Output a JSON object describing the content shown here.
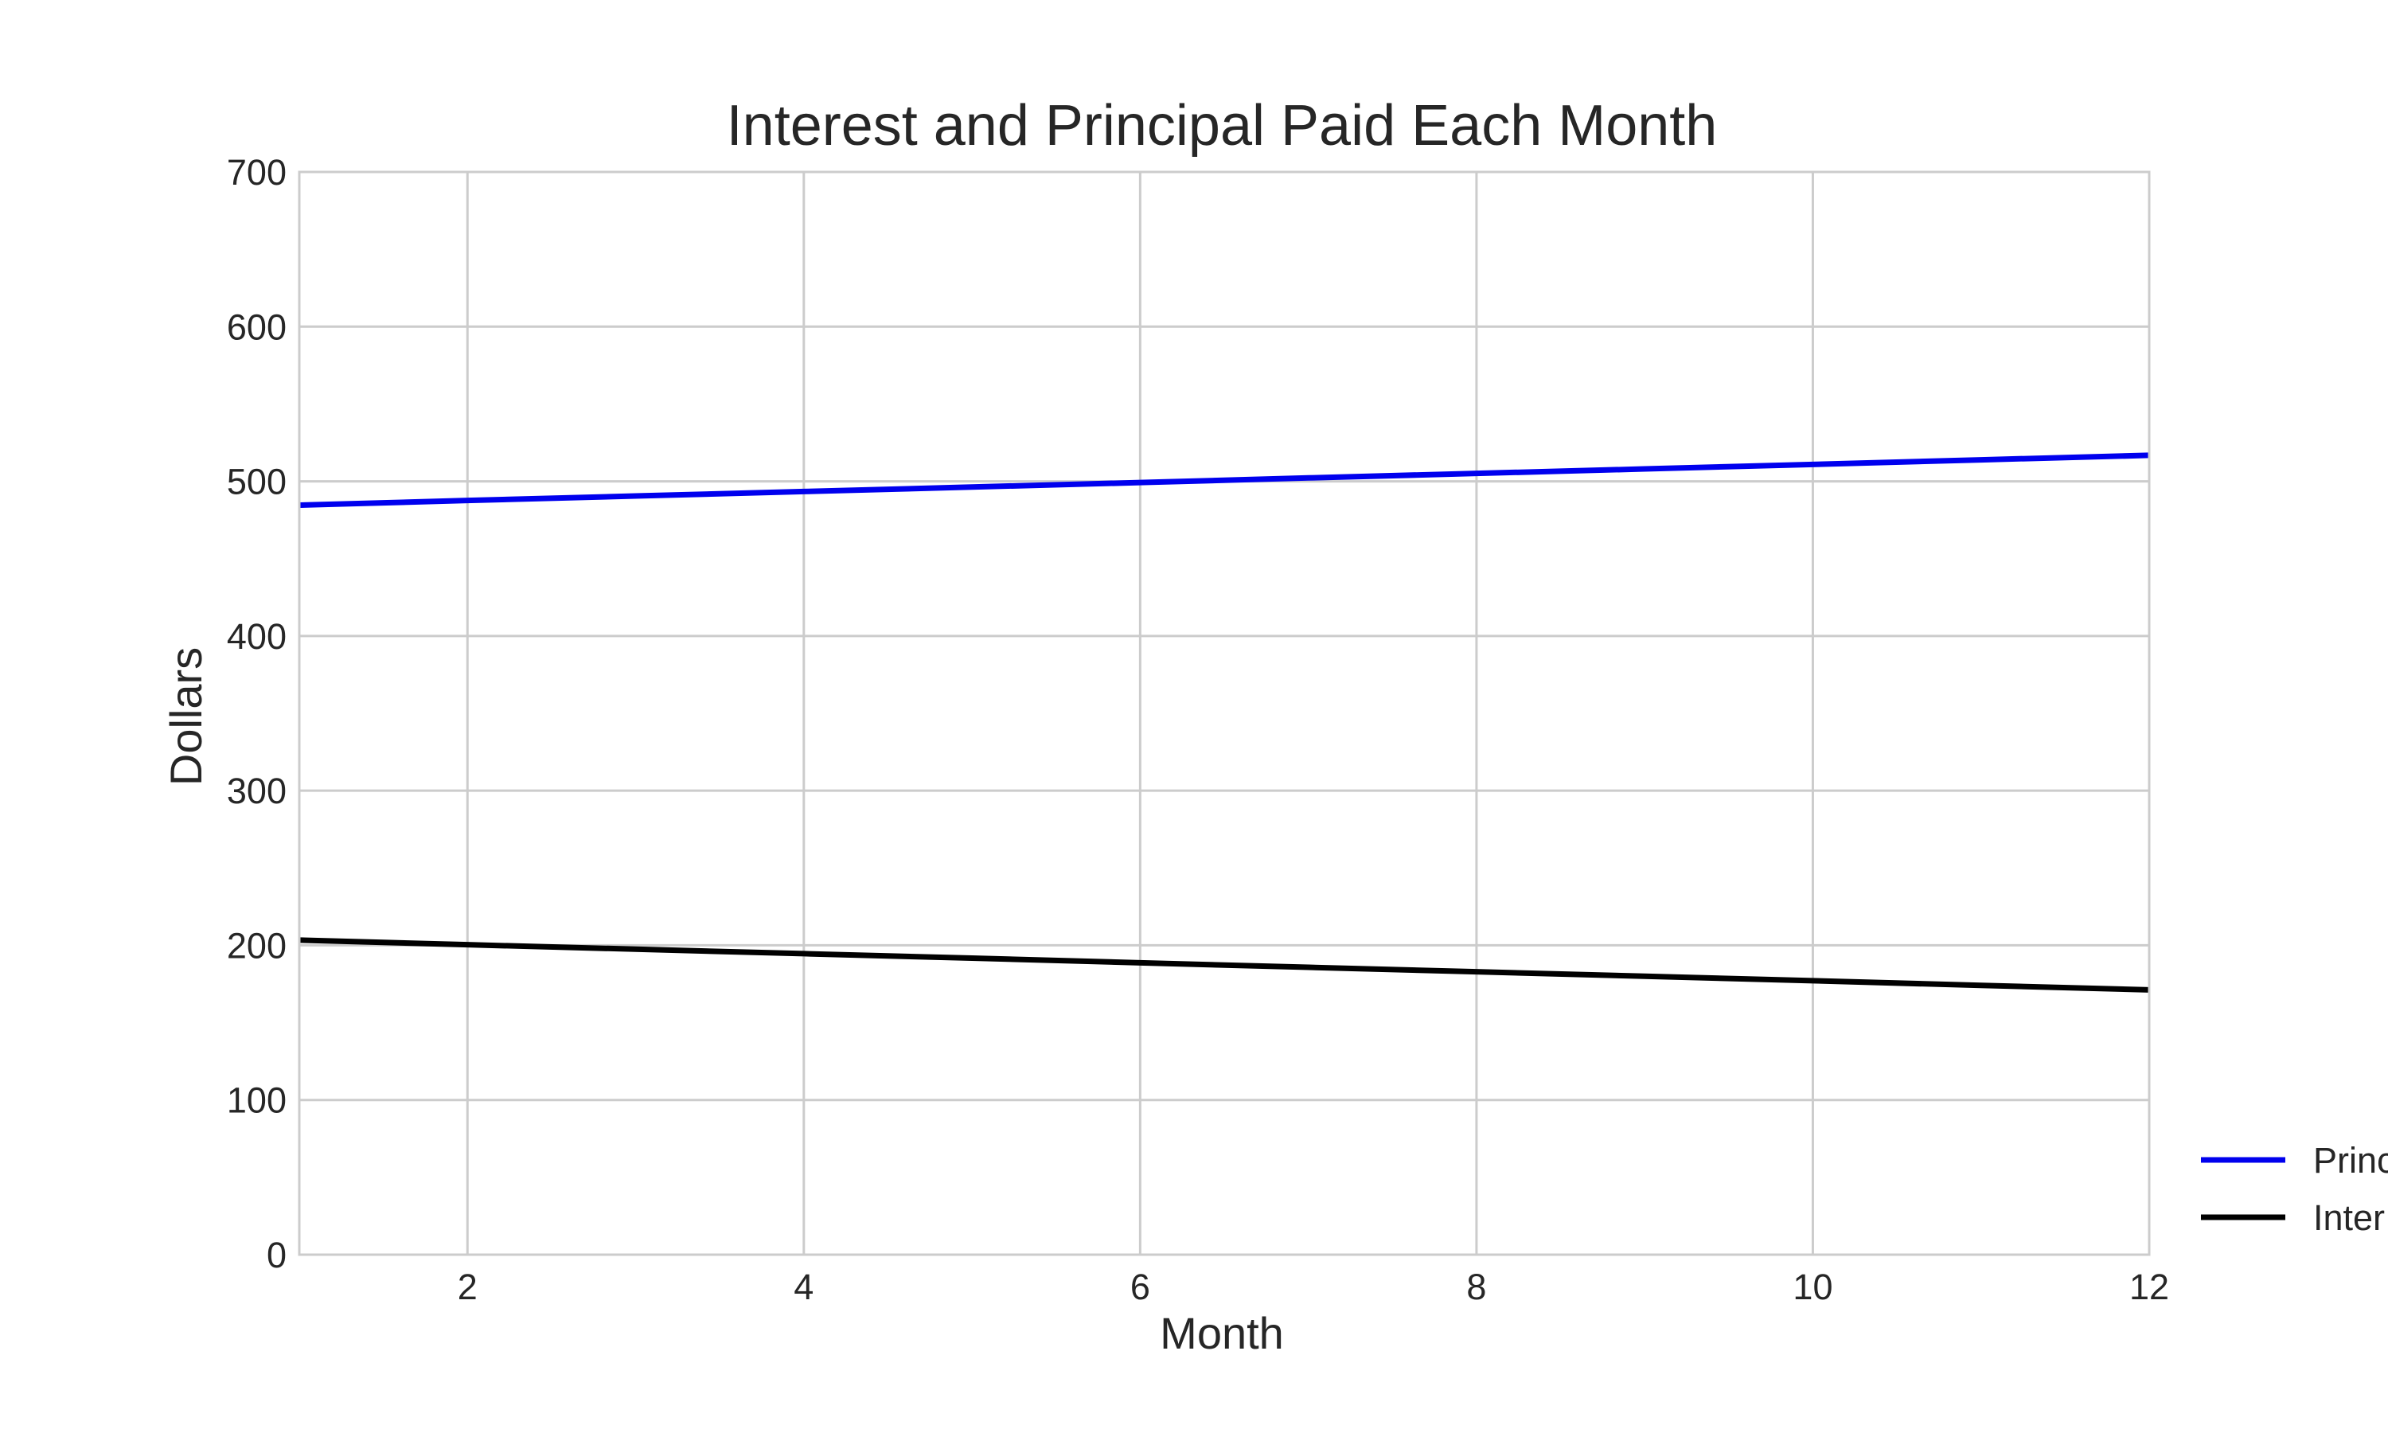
{
  "chart_data": {
    "type": "line",
    "title": "Interest and Principal Paid Each Month",
    "xlabel": "Month",
    "ylabel": "Dollars",
    "xlim": [
      1,
      12
    ],
    "ylim": [
      0,
      700
    ],
    "xticks": [
      2,
      4,
      6,
      8,
      10,
      12
    ],
    "yticks": [
      0,
      100,
      200,
      300,
      400,
      500,
      600,
      700
    ],
    "grid": true,
    "legend_position": "outside-right-bottom",
    "x": [
      1,
      2,
      3,
      4,
      5,
      6,
      7,
      8,
      9,
      10,
      11,
      12
    ],
    "series": [
      {
        "name": "Principal",
        "legend_text": "Princ",
        "color": "#0000ee",
        "values": [
          484.6,
          487.6,
          490.5,
          493.4,
          496.3,
          499.2,
          502.2,
          505.1,
          508.0,
          510.9,
          513.9,
          516.8
        ]
      },
      {
        "name": "Interest",
        "legend_text": "Inter",
        "color": "#000000",
        "values": [
          203.4,
          200.4,
          197.5,
          194.6,
          191.7,
          188.7,
          185.8,
          182.9,
          180.0,
          177.1,
          174.1,
          171.2
        ]
      }
    ]
  }
}
